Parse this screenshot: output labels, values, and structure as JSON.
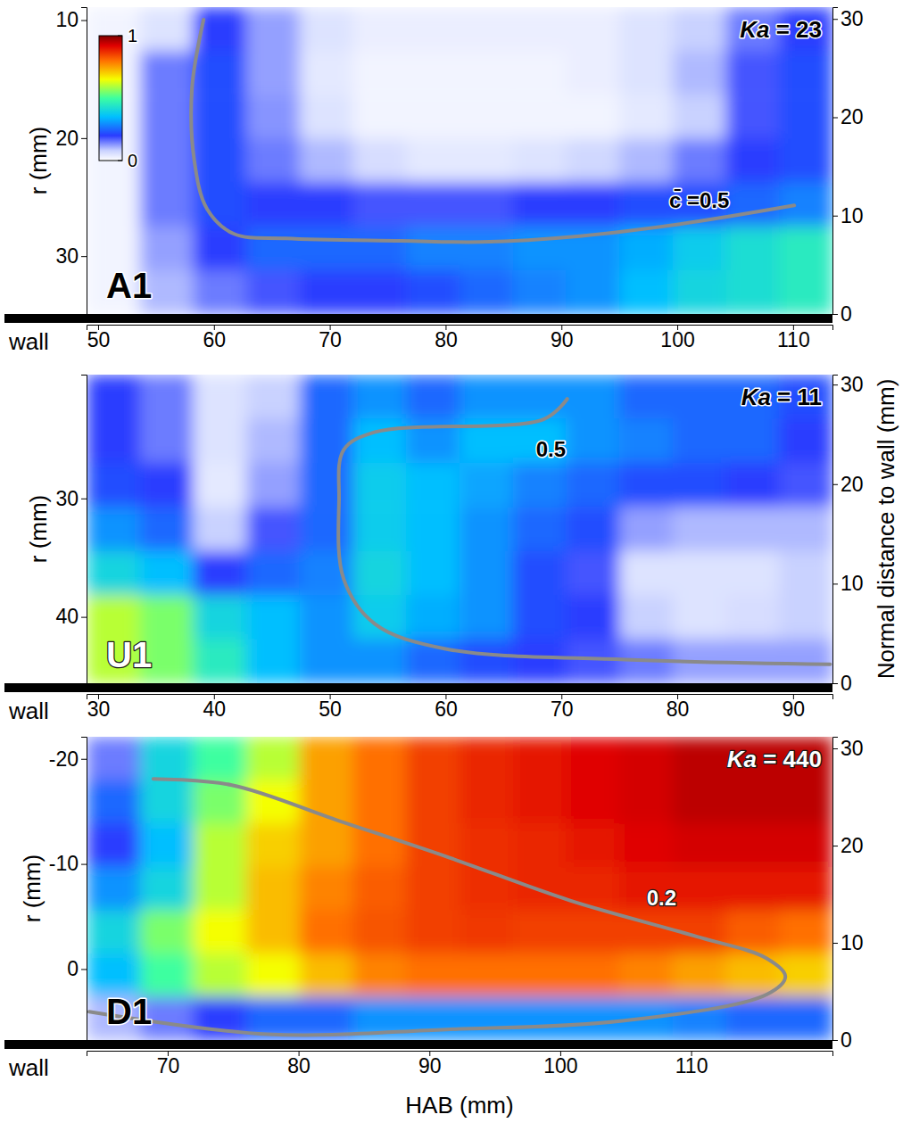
{
  "chart_data": [
    {
      "type": "heatmap",
      "panel_label": "A1",
      "annotation": "Ka = 23",
      "y_label": "r (mm)",
      "wall_label": "wall",
      "xlim": [
        49,
        113.4
      ],
      "xticks": [
        50,
        60,
        70,
        80,
        90,
        100,
        110
      ],
      "ylim": [
        8.9,
        34.9
      ],
      "yticks": [
        10,
        20,
        30
      ],
      "y2lim": [
        0,
        31.2
      ],
      "y2ticks": [
        0,
        10,
        20,
        30
      ],
      "x": [
        51.3,
        55.9,
        60.5,
        65.1,
        69.7,
        74.3,
        78.9,
        83.5,
        88.1,
        92.7,
        97.3,
        101.9,
        106.5,
        111.1
      ],
      "y": [
        10.76,
        14.47,
        18.19,
        21.9,
        25.61,
        29.33,
        33.04
      ],
      "values": [
        [
          0.02,
          0.05,
          0.2,
          0.12,
          0.05,
          0.03,
          0.03,
          0.03,
          0.03,
          0.03,
          0.05,
          0.08,
          0.15,
          0.2
        ],
        [
          0.02,
          0.15,
          0.22,
          0.12,
          0.04,
          0.02,
          0.02,
          0.02,
          0.02,
          0.03,
          0.05,
          0.1,
          0.18,
          0.22
        ],
        [
          0.02,
          0.15,
          0.22,
          0.13,
          0.05,
          0.02,
          0.02,
          0.02,
          0.02,
          0.02,
          0.04,
          0.08,
          0.18,
          0.22
        ],
        [
          0.02,
          0.15,
          0.22,
          0.15,
          0.1,
          0.06,
          0.04,
          0.04,
          0.05,
          0.07,
          0.1,
          0.15,
          0.2,
          0.22
        ],
        [
          0.02,
          0.15,
          0.22,
          0.2,
          0.2,
          0.18,
          0.18,
          0.18,
          0.2,
          0.2,
          0.22,
          0.22,
          0.25,
          0.28
        ],
        [
          0.02,
          0.12,
          0.2,
          0.25,
          0.25,
          0.25,
          0.28,
          0.28,
          0.3,
          0.3,
          0.33,
          0.38,
          0.42,
          0.45
        ],
        [
          0.02,
          0.1,
          0.15,
          0.18,
          0.2,
          0.2,
          0.22,
          0.25,
          0.28,
          0.3,
          0.35,
          0.4,
          0.42,
          0.45
        ]
      ],
      "contour": {
        "label": "c̄ =0.5",
        "label_x": 99.3,
        "label_y": 25.9,
        "x": [
          59.1,
          58.1,
          58.3,
          59.4,
          61.7,
          66.2,
          76.2,
          83.1,
          91.6,
          100.1,
          110.1
        ],
        "y": [
          9.96,
          15.8,
          21.9,
          26.0,
          28.1,
          28.5,
          28.7,
          28.8,
          28.3,
          27.3,
          25.7
        ]
      },
      "colorbar": {
        "range": [
          0,
          1
        ],
        "ticks": [
          0,
          1
        ]
      }
    },
    {
      "type": "heatmap",
      "panel_label": "U1",
      "annotation": "Ka = 11",
      "y_label": "r (mm)",
      "wall_label": "wall",
      "y2_label": "Normal distance to wall (mm)",
      "xlim": [
        29,
        93.4
      ],
      "xticks": [
        30,
        40,
        50,
        60,
        70,
        80,
        90
      ],
      "ylim": [
        19.55,
        45.6
      ],
      "yticks": [
        30,
        40
      ],
      "y2lim": [
        0,
        31
      ],
      "y2ticks": [
        0,
        10,
        20,
        30
      ],
      "x": [
        31.3,
        35.9,
        40.5,
        45.1,
        49.7,
        54.3,
        58.9,
        63.5,
        68.1,
        72.7,
        77.3,
        81.9,
        86.5,
        91.1
      ],
      "y": [
        21.41,
        25.13,
        28.85,
        32.58,
        36.3,
        40.02,
        43.74
      ],
      "values": [
        [
          0.2,
          0.15,
          0.05,
          0.08,
          0.25,
          0.3,
          0.25,
          0.3,
          0.3,
          0.3,
          0.25,
          0.25,
          0.25,
          0.22
        ],
        [
          0.2,
          0.15,
          0.05,
          0.1,
          0.25,
          0.35,
          0.3,
          0.35,
          0.35,
          0.3,
          0.28,
          0.25,
          0.25,
          0.2
        ],
        [
          0.22,
          0.2,
          0.04,
          0.12,
          0.25,
          0.38,
          0.35,
          0.32,
          0.28,
          0.25,
          0.22,
          0.22,
          0.2,
          0.18
        ],
        [
          0.3,
          0.25,
          0.08,
          0.18,
          0.25,
          0.38,
          0.35,
          0.3,
          0.25,
          0.22,
          0.12,
          0.1,
          0.1,
          0.1
        ],
        [
          0.4,
          0.35,
          0.2,
          0.25,
          0.28,
          0.4,
          0.35,
          0.3,
          0.22,
          0.18,
          0.05,
          0.05,
          0.05,
          0.08
        ],
        [
          0.6,
          0.55,
          0.4,
          0.35,
          0.3,
          0.38,
          0.33,
          0.3,
          0.22,
          0.2,
          0.08,
          0.05,
          0.06,
          0.08
        ],
        [
          0.6,
          0.55,
          0.45,
          0.35,
          0.3,
          0.3,
          0.25,
          0.22,
          0.2,
          0.18,
          0.15,
          0.12,
          0.12,
          0.12
        ]
      ],
      "contour": {
        "label": "0.5",
        "label_x": 67.8,
        "label_y": 26.5,
        "x": [
          70.5,
          68.5,
          53.9,
          51.2,
          50.8,
          51.2,
          53.9,
          60.0,
          75.5,
          93.2
        ],
        "y": [
          21.6,
          23.3,
          24.4,
          25.9,
          30.1,
          36.8,
          40.6,
          42.7,
          43.6,
          44.0
        ]
      }
    },
    {
      "type": "heatmap",
      "panel_label": "D1",
      "annotation": "Ka = 440",
      "y_label": "r (mm)",
      "wall_label": "wall",
      "x_label": "HAB (mm)",
      "xlim": [
        63.8,
        120.8
      ],
      "xticks": [
        70,
        80,
        90,
        100,
        110
      ],
      "ylim": [
        -22.1,
        6.75
      ],
      "yticks": [
        -20,
        -10,
        0
      ],
      "y2lim": [
        0,
        31.2
      ],
      "y2ticks": [
        0,
        10,
        20,
        30
      ],
      "x": [
        65.84,
        69.91,
        73.98,
        78.05,
        82.12,
        86.19,
        90.26,
        94.33,
        98.41,
        102.48,
        106.55,
        110.62,
        114.69,
        118.76
      ],
      "y": [
        -20.04,
        -15.92,
        -11.8,
        -7.68,
        -3.56,
        0.56,
        4.68
      ],
      "values": [
        [
          0.15,
          0.4,
          0.5,
          0.6,
          0.75,
          0.8,
          0.85,
          0.88,
          0.9,
          0.92,
          0.93,
          0.95,
          0.95,
          0.95
        ],
        [
          0.25,
          0.4,
          0.55,
          0.65,
          0.75,
          0.8,
          0.85,
          0.88,
          0.9,
          0.92,
          0.93,
          0.95,
          0.95,
          0.95
        ],
        [
          0.2,
          0.35,
          0.6,
          0.7,
          0.75,
          0.8,
          0.85,
          0.87,
          0.88,
          0.9,
          0.92,
          0.93,
          0.93,
          0.93
        ],
        [
          0.3,
          0.4,
          0.6,
          0.72,
          0.78,
          0.82,
          0.85,
          0.87,
          0.88,
          0.88,
          0.9,
          0.9,
          0.9,
          0.9
        ],
        [
          0.4,
          0.55,
          0.65,
          0.72,
          0.8,
          0.83,
          0.85,
          0.86,
          0.85,
          0.85,
          0.85,
          0.85,
          0.82,
          0.8
        ],
        [
          0.35,
          0.5,
          0.6,
          0.65,
          0.72,
          0.78,
          0.8,
          0.8,
          0.8,
          0.8,
          0.78,
          0.75,
          0.72,
          0.7
        ],
        [
          0.1,
          0.15,
          0.2,
          0.25,
          0.25,
          0.3,
          0.3,
          0.3,
          0.3,
          0.3,
          0.3,
          0.28,
          0.25,
          0.25
        ]
      ],
      "contour": {
        "label": "0.2",
        "label_x": 106.6,
        "label_y": -6.1,
        "x": [
          68.9,
          74.9,
          83.1,
          91.3,
          100.8,
          110.4,
          115.8,
          117.2,
          115.8,
          104.9,
          91.3,
          77.6,
          64.0
        ],
        "y": [
          -18.1,
          -17.5,
          -14.1,
          -10.7,
          -6.5,
          -3.1,
          -1.0,
          0.7,
          2.4,
          4.9,
          5.75,
          6.2,
          4.06
        ]
      }
    }
  ]
}
